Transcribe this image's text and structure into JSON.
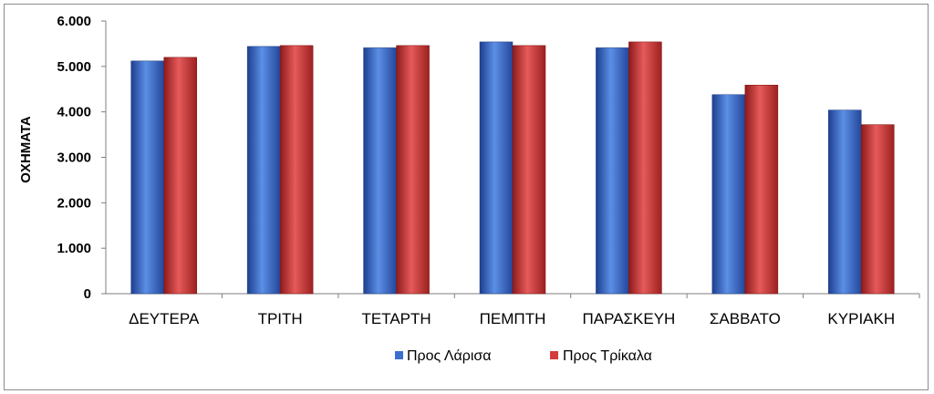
{
  "chart_data": {
    "type": "bar",
    "ylabel": "ΟΧΗΜΑΤΑ",
    "ylim": [
      0,
      6000
    ],
    "yticks": [
      "0",
      "1.000",
      "2.000",
      "3.000",
      "4.000",
      "5.000",
      "6.000"
    ],
    "categories": [
      "ΔΕΥΤΕΡΑ",
      "ΤΡΙΤΗ",
      "ΤΕΤΑΡΤΗ",
      "ΠΕΜΠΤΗ",
      "ΠΑΡΑΣΚΕΥΗ",
      "ΣΑΒΒΑΤΟ",
      "ΚΥΡΙΑΚΗ"
    ],
    "series": [
      {
        "name": "Προς Λάρισα",
        "color": "#3a6fd0",
        "values": [
          5120,
          5440,
          5410,
          5540,
          5410,
          4380,
          4040
        ]
      },
      {
        "name": "Προς Τρίκαλα",
        "color": "#d23c3c",
        "values": [
          5200,
          5460,
          5460,
          5460,
          5540,
          4590,
          3720
        ]
      }
    ],
    "grid": false,
    "legend": "bottom"
  }
}
